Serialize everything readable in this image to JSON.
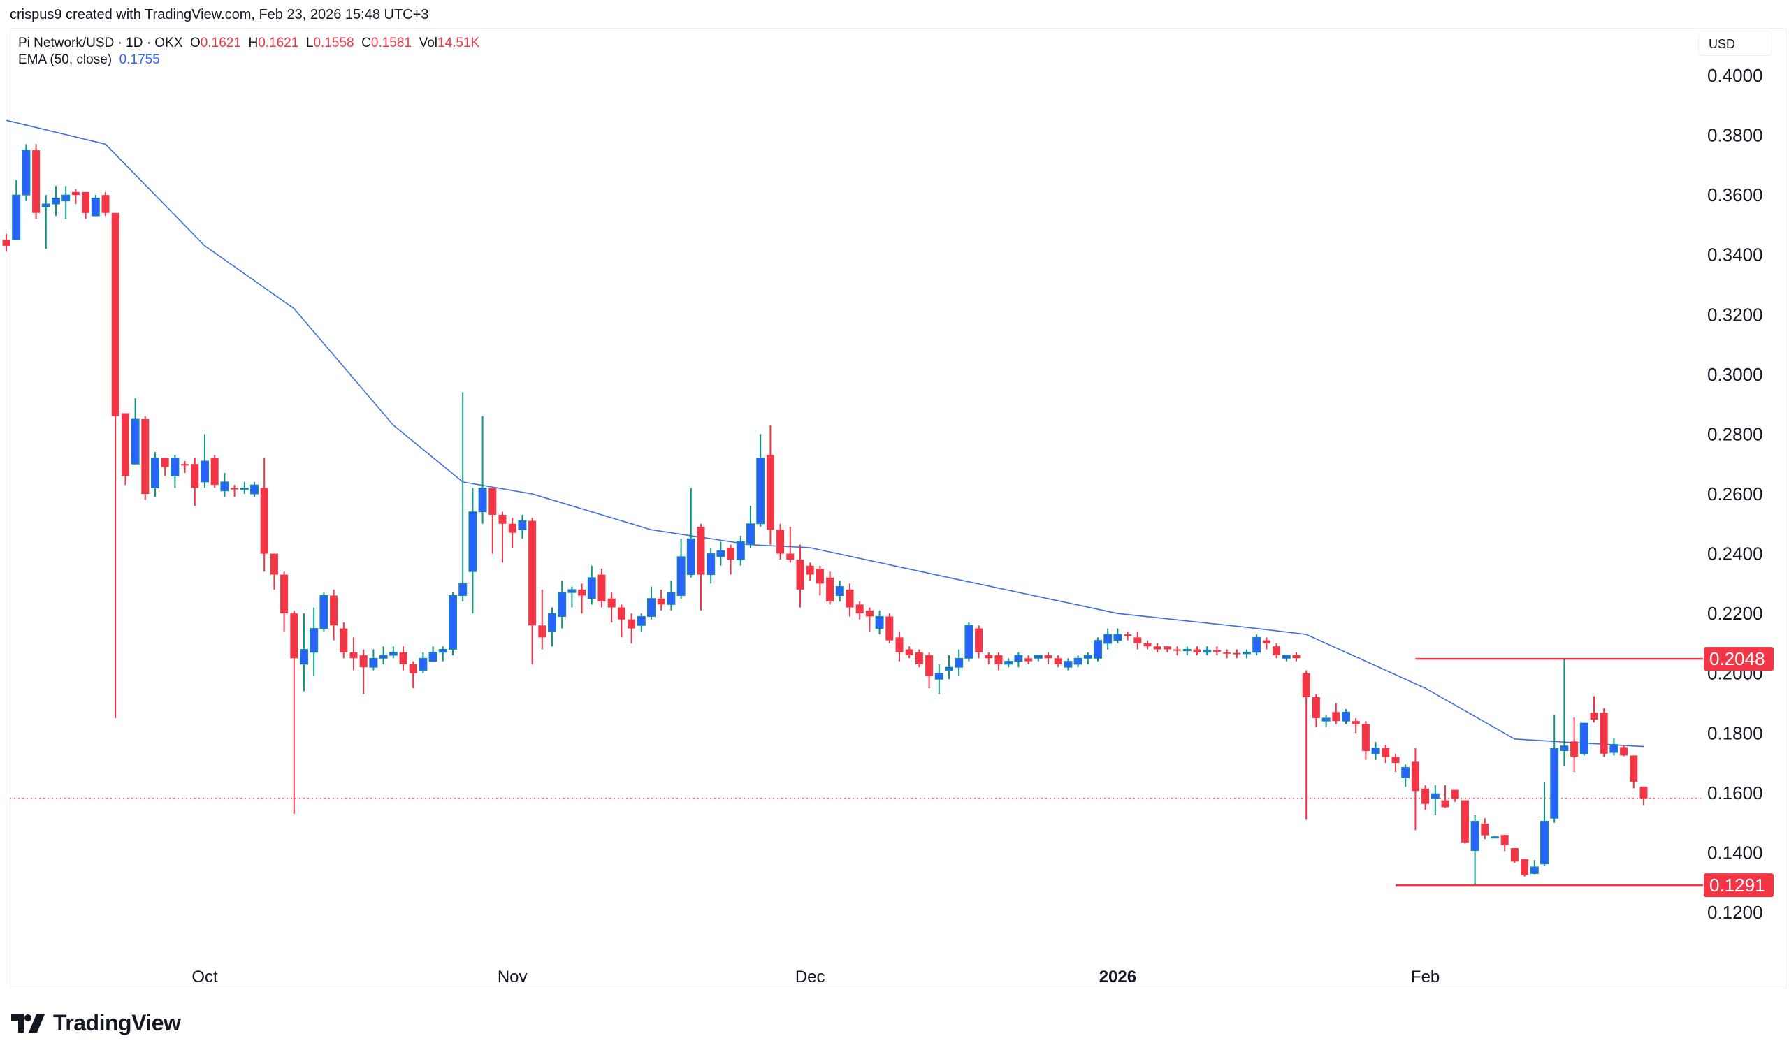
{
  "credit": "crispus9 created with TradingView.com, Feb 23, 2026 15:48 UTC+3",
  "legend": {
    "symbol": "Pi Network/USD · 1D · OKX",
    "o_label": "O",
    "o": "0.1621",
    "h_label": "H",
    "h": "0.1621",
    "l_label": "L",
    "l": "0.1558",
    "c_label": "C",
    "c": "0.1581",
    "vol_label": "Vol",
    "vol": "14.51K",
    "ema_label": "EMA (50, close)",
    "ema": "0.1755"
  },
  "currency": "USD",
  "logo_text": "TradingView",
  "colors": {
    "up": "#2962ff",
    "up_wick": "#089981",
    "down": "#f23645",
    "ema": "#3d6fdb",
    "level": "#f23645"
  },
  "chart_data": {
    "type": "candlestick",
    "ylim": [
      0.11,
      0.41
    ],
    "yticks": [
      "0.4000",
      "0.3800",
      "0.3600",
      "0.3400",
      "0.3200",
      "0.3000",
      "0.2800",
      "0.2600",
      "0.2400",
      "0.2200",
      "0.2000",
      "0.1800",
      "0.1600",
      "0.1400",
      "0.1200"
    ],
    "xticks": [
      {
        "label": "Oct",
        "date": "2025-10-01"
      },
      {
        "label": "Nov",
        "date": "2025-11-01"
      },
      {
        "label": "Dec",
        "date": "2025-12-01"
      },
      {
        "label": "2026",
        "date": "2026-01-01",
        "bold": true
      },
      {
        "label": "Feb",
        "date": "2026-02-01"
      }
    ],
    "levels": [
      {
        "value": 0.2048,
        "label": "0.2048",
        "from": "2026-01-31"
      },
      {
        "value": 0.1291,
        "label": "0.1291",
        "from": "2026-01-29"
      }
    ],
    "last_close": 0.1581,
    "ema": [
      [
        "2025-09-11",
        0.385
      ],
      [
        "2025-09-21",
        0.377
      ],
      [
        "2025-10-01",
        0.343
      ],
      [
        "2025-10-10",
        0.322
      ],
      [
        "2025-10-20",
        0.283
      ],
      [
        "2025-10-27",
        0.264
      ],
      [
        "2025-11-03",
        0.26
      ],
      [
        "2025-11-15",
        0.248
      ],
      [
        "2025-11-25",
        0.243
      ],
      [
        "2025-12-01",
        0.242
      ],
      [
        "2025-12-15",
        0.232
      ],
      [
        "2026-01-01",
        0.22
      ],
      [
        "2026-01-15",
        0.215
      ],
      [
        "2026-01-20",
        0.213
      ],
      [
        "2026-02-01",
        0.195
      ],
      [
        "2026-02-10",
        0.178
      ],
      [
        "2026-02-15",
        0.177
      ],
      [
        "2026-02-23",
        0.1755
      ]
    ],
    "ohlc_fields": [
      "date",
      "open",
      "high",
      "low",
      "close"
    ],
    "candles": [
      [
        "2025-09-11",
        0.345,
        0.347,
        0.341,
        0.343
      ],
      [
        "2025-09-12",
        0.345,
        0.365,
        0.345,
        0.36
      ],
      [
        "2025-09-13",
        0.36,
        0.377,
        0.358,
        0.375
      ],
      [
        "2025-09-14",
        0.375,
        0.377,
        0.352,
        0.354
      ],
      [
        "2025-09-15",
        0.356,
        0.36,
        0.342,
        0.357
      ],
      [
        "2025-09-16",
        0.357,
        0.363,
        0.353,
        0.359
      ],
      [
        "2025-09-17",
        0.358,
        0.363,
        0.352,
        0.36
      ],
      [
        "2025-09-18",
        0.361,
        0.362,
        0.357,
        0.36
      ],
      [
        "2025-09-19",
        0.361,
        0.361,
        0.352,
        0.354
      ],
      [
        "2025-09-20",
        0.353,
        0.36,
        0.353,
        0.359
      ],
      [
        "2025-09-21",
        0.36,
        0.361,
        0.353,
        0.354
      ],
      [
        "2025-09-22",
        0.354,
        0.354,
        0.185,
        0.286
      ],
      [
        "2025-09-23",
        0.287,
        0.287,
        0.263,
        0.266
      ],
      [
        "2025-09-24",
        0.27,
        0.292,
        0.27,
        0.285
      ],
      [
        "2025-09-25",
        0.285,
        0.286,
        0.258,
        0.26
      ],
      [
        "2025-09-26",
        0.262,
        0.274,
        0.259,
        0.272
      ],
      [
        "2025-09-27",
        0.272,
        0.272,
        0.266,
        0.269
      ],
      [
        "2025-09-28",
        0.266,
        0.273,
        0.262,
        0.272
      ],
      [
        "2025-09-29",
        0.27,
        0.271,
        0.267,
        0.2695
      ],
      [
        "2025-09-30",
        0.27,
        0.272,
        0.256,
        0.262
      ],
      [
        "2025-10-01",
        0.264,
        0.28,
        0.262,
        0.271
      ],
      [
        "2025-10-02",
        0.272,
        0.273,
        0.262,
        0.263
      ],
      [
        "2025-10-03",
        0.261,
        0.267,
        0.259,
        0.264
      ],
      [
        "2025-10-04",
        0.262,
        0.263,
        0.259,
        0.2615
      ],
      [
        "2025-10-05",
        0.262,
        0.264,
        0.26,
        0.262
      ],
      [
        "2025-10-06",
        0.26,
        0.264,
        0.259,
        0.263
      ],
      [
        "2025-10-07",
        0.262,
        0.272,
        0.234,
        0.24
      ],
      [
        "2025-10-08",
        0.24,
        0.24,
        0.228,
        0.233
      ],
      [
        "2025-10-09",
        0.233,
        0.234,
        0.214,
        0.22
      ],
      [
        "2025-10-10",
        0.22,
        0.221,
        0.153,
        0.205
      ],
      [
        "2025-10-11",
        0.203,
        0.22,
        0.194,
        0.208
      ],
      [
        "2025-10-12",
        0.207,
        0.222,
        0.199,
        0.215
      ],
      [
        "2025-10-13",
        0.215,
        0.227,
        0.214,
        0.226
      ],
      [
        "2025-10-14",
        0.226,
        0.228,
        0.211,
        0.216
      ],
      [
        "2025-10-15",
        0.215,
        0.217,
        0.205,
        0.207
      ],
      [
        "2025-10-16",
        0.207,
        0.212,
        0.201,
        0.205
      ],
      [
        "2025-10-17",
        0.206,
        0.208,
        0.193,
        0.202
      ],
      [
        "2025-10-18",
        0.202,
        0.208,
        0.201,
        0.205
      ],
      [
        "2025-10-19",
        0.205,
        0.209,
        0.203,
        0.206
      ],
      [
        "2025-10-20",
        0.206,
        0.209,
        0.205,
        0.207
      ],
      [
        "2025-10-21",
        0.207,
        0.209,
        0.201,
        0.203
      ],
      [
        "2025-10-22",
        0.203,
        0.204,
        0.195,
        0.2
      ],
      [
        "2025-10-23",
        0.201,
        0.207,
        0.2,
        0.205
      ],
      [
        "2025-10-24",
        0.204,
        0.209,
        0.204,
        0.207
      ],
      [
        "2025-10-25",
        0.207,
        0.209,
        0.204,
        0.208
      ],
      [
        "2025-10-26",
        0.208,
        0.227,
        0.206,
        0.226
      ],
      [
        "2025-10-27",
        0.226,
        0.294,
        0.224,
        0.23
      ],
      [
        "2025-10-28",
        0.234,
        0.262,
        0.22,
        0.254
      ],
      [
        "2025-10-29",
        0.254,
        0.286,
        0.25,
        0.262
      ],
      [
        "2025-10-30",
        0.262,
        0.262,
        0.24,
        0.253
      ],
      [
        "2025-10-31",
        0.253,
        0.254,
        0.237,
        0.25
      ],
      [
        "2025-11-01",
        0.25,
        0.252,
        0.242,
        0.247
      ],
      [
        "2025-11-02",
        0.248,
        0.253,
        0.245,
        0.251
      ],
      [
        "2025-11-03",
        0.251,
        0.252,
        0.203,
        0.216
      ],
      [
        "2025-11-04",
        0.216,
        0.228,
        0.208,
        0.212
      ],
      [
        "2025-11-05",
        0.214,
        0.222,
        0.209,
        0.22
      ],
      [
        "2025-11-06",
        0.219,
        0.231,
        0.215,
        0.227
      ],
      [
        "2025-11-07",
        0.227,
        0.229,
        0.222,
        0.228
      ],
      [
        "2025-11-08",
        0.228,
        0.23,
        0.22,
        0.226
      ],
      [
        "2025-11-09",
        0.225,
        0.236,
        0.223,
        0.232
      ],
      [
        "2025-11-10",
        0.233,
        0.235,
        0.222,
        0.224
      ],
      [
        "2025-11-11",
        0.225,
        0.227,
        0.217,
        0.222
      ],
      [
        "2025-11-12",
        0.222,
        0.223,
        0.212,
        0.218
      ],
      [
        "2025-11-13",
        0.218,
        0.22,
        0.21,
        0.215
      ],
      [
        "2025-11-14",
        0.216,
        0.22,
        0.214,
        0.219
      ],
      [
        "2025-11-15",
        0.219,
        0.229,
        0.218,
        0.225
      ],
      [
        "2025-11-16",
        0.225,
        0.228,
        0.221,
        0.223
      ],
      [
        "2025-11-17",
        0.223,
        0.231,
        0.221,
        0.227
      ],
      [
        "2025-11-18",
        0.226,
        0.245,
        0.225,
        0.239
      ],
      [
        "2025-11-19",
        0.233,
        0.262,
        0.232,
        0.245
      ],
      [
        "2025-11-20",
        0.249,
        0.25,
        0.221,
        0.233
      ],
      [
        "2025-11-21",
        0.233,
        0.242,
        0.23,
        0.24
      ],
      [
        "2025-11-22",
        0.239,
        0.244,
        0.236,
        0.241
      ],
      [
        "2025-11-23",
        0.242,
        0.243,
        0.233,
        0.238
      ],
      [
        "2025-11-24",
        0.238,
        0.246,
        0.236,
        0.244
      ],
      [
        "2025-11-25",
        0.243,
        0.256,
        0.242,
        0.25
      ],
      [
        "2025-11-26",
        0.25,
        0.28,
        0.249,
        0.272
      ],
      [
        "2025-11-27",
        0.273,
        0.283,
        0.243,
        0.248
      ],
      [
        "2025-11-28",
        0.248,
        0.25,
        0.238,
        0.24
      ],
      [
        "2025-11-29",
        0.24,
        0.249,
        0.237,
        0.238
      ],
      [
        "2025-11-30",
        0.238,
        0.243,
        0.222,
        0.228
      ],
      [
        "2025-12-01",
        0.236,
        0.237,
        0.231,
        0.233
      ],
      [
        "2025-12-02",
        0.235,
        0.236,
        0.226,
        0.23
      ],
      [
        "2025-12-03",
        0.232,
        0.234,
        0.223,
        0.224
      ],
      [
        "2025-12-04",
        0.226,
        0.231,
        0.224,
        0.229
      ],
      [
        "2025-12-05",
        0.228,
        0.23,
        0.219,
        0.222
      ],
      [
        "2025-12-06",
        0.223,
        0.224,
        0.218,
        0.22
      ],
      [
        "2025-12-07",
        0.221,
        0.222,
        0.214,
        0.219
      ],
      [
        "2025-12-08",
        0.215,
        0.221,
        0.213,
        0.219
      ],
      [
        "2025-12-09",
        0.219,
        0.22,
        0.21,
        0.211
      ],
      [
        "2025-12-10",
        0.212,
        0.214,
        0.204,
        0.207
      ],
      [
        "2025-12-11",
        0.208,
        0.209,
        0.205,
        0.206
      ],
      [
        "2025-12-12",
        0.207,
        0.208,
        0.202,
        0.203
      ],
      [
        "2025-12-13",
        0.206,
        0.207,
        0.195,
        0.199
      ],
      [
        "2025-12-14",
        0.198,
        0.203,
        0.193,
        0.2
      ],
      [
        "2025-12-15",
        0.201,
        0.206,
        0.198,
        0.202
      ],
      [
        "2025-12-16",
        0.202,
        0.208,
        0.199,
        0.205
      ],
      [
        "2025-12-17",
        0.205,
        0.217,
        0.204,
        0.216
      ],
      [
        "2025-12-18",
        0.215,
        0.216,
        0.205,
        0.207
      ],
      [
        "2025-12-19",
        0.206,
        0.207,
        0.203,
        0.205
      ],
      [
        "2025-12-20",
        0.206,
        0.207,
        0.201,
        0.203
      ],
      [
        "2025-12-21",
        0.203,
        0.205,
        0.202,
        0.204
      ],
      [
        "2025-12-22",
        0.204,
        0.207,
        0.202,
        0.206
      ],
      [
        "2025-12-23",
        0.205,
        0.206,
        0.203,
        0.204
      ],
      [
        "2025-12-24",
        0.205,
        0.206,
        0.204,
        0.206
      ],
      [
        "2025-12-25",
        0.206,
        0.207,
        0.203,
        0.205
      ],
      [
        "2025-12-26",
        0.205,
        0.206,
        0.202,
        0.203
      ],
      [
        "2025-12-27",
        0.202,
        0.205,
        0.201,
        0.204
      ],
      [
        "2025-12-28",
        0.203,
        0.206,
        0.202,
        0.205
      ],
      [
        "2025-12-29",
        0.205,
        0.207,
        0.203,
        0.206
      ],
      [
        "2025-12-30",
        0.205,
        0.212,
        0.204,
        0.211
      ],
      [
        "2025-12-31",
        0.21,
        0.215,
        0.208,
        0.213
      ],
      [
        "2026-01-01",
        0.211,
        0.215,
        0.21,
        0.213
      ],
      [
        "2026-01-02",
        0.213,
        0.214,
        0.211,
        0.2125
      ],
      [
        "2026-01-03",
        0.212,
        0.214,
        0.208,
        0.21
      ],
      [
        "2026-01-04",
        0.21,
        0.211,
        0.208,
        0.209
      ],
      [
        "2026-01-05",
        0.209,
        0.21,
        0.207,
        0.208
      ],
      [
        "2026-01-06",
        0.209,
        0.209,
        0.207,
        0.208
      ],
      [
        "2026-01-07",
        0.208,
        0.209,
        0.206,
        0.2075
      ],
      [
        "2026-01-08",
        0.2075,
        0.209,
        0.206,
        0.208
      ],
      [
        "2026-01-09",
        0.208,
        0.209,
        0.206,
        0.207
      ],
      [
        "2026-01-10",
        0.207,
        0.209,
        0.206,
        0.2078
      ],
      [
        "2026-01-11",
        0.2078,
        0.209,
        0.206,
        0.2072
      ],
      [
        "2026-01-12",
        0.207,
        0.208,
        0.205,
        0.2068
      ],
      [
        "2026-01-13",
        0.2068,
        0.208,
        0.205,
        0.2065
      ],
      [
        "2026-01-14",
        0.2065,
        0.208,
        0.205,
        0.207
      ],
      [
        "2026-01-15",
        0.207,
        0.213,
        0.206,
        0.212
      ],
      [
        "2026-01-16",
        0.211,
        0.212,
        0.208,
        0.21
      ],
      [
        "2026-01-17",
        0.209,
        0.21,
        0.205,
        0.206
      ],
      [
        "2026-01-18",
        0.205,
        0.206,
        0.204,
        0.206
      ],
      [
        "2026-01-19",
        0.206,
        0.207,
        0.204,
        0.205
      ],
      [
        "2026-01-20",
        0.2,
        0.201,
        0.151,
        0.192
      ],
      [
        "2026-01-21",
        0.192,
        0.193,
        0.182,
        0.185
      ],
      [
        "2026-01-22",
        0.184,
        0.186,
        0.182,
        0.185
      ],
      [
        "2026-01-23",
        0.187,
        0.19,
        0.183,
        0.184
      ],
      [
        "2026-01-24",
        0.184,
        0.188,
        0.183,
        0.187
      ],
      [
        "2026-01-25",
        0.184,
        0.185,
        0.18,
        0.183
      ],
      [
        "2026-01-26",
        0.183,
        0.184,
        0.171,
        0.174
      ],
      [
        "2026-01-27",
        0.173,
        0.177,
        0.171,
        0.175
      ],
      [
        "2026-01-28",
        0.175,
        0.176,
        0.17,
        0.172
      ],
      [
        "2026-01-29",
        0.172,
        0.173,
        0.167,
        0.17
      ],
      [
        "2026-01-30",
        0.165,
        0.1695,
        0.162,
        0.1685
      ],
      [
        "2026-01-31",
        0.1704,
        0.175,
        0.1475,
        0.1606
      ],
      [
        "2026-02-01",
        0.1614,
        0.1625,
        0.1543,
        0.1563
      ],
      [
        "2026-02-02",
        0.1581,
        0.1625,
        0.1525,
        0.1597
      ],
      [
        "2026-02-03",
        0.1575,
        0.1625,
        0.155,
        0.1552
      ],
      [
        "2026-02-04",
        0.161,
        0.161,
        0.157,
        0.158
      ],
      [
        "2026-02-05",
        0.1575,
        0.1575,
        0.143,
        0.1434
      ],
      [
        "2026-02-06",
        0.1407,
        0.1525,
        0.1291,
        0.1505
      ],
      [
        "2026-02-07",
        0.1497,
        0.1515,
        0.1445,
        0.1458
      ],
      [
        "2026-02-08",
        0.1452,
        0.1455,
        0.1449,
        0.1453
      ],
      [
        "2026-02-09",
        0.1459,
        0.1459,
        0.1405,
        0.1425
      ],
      [
        "2026-02-10",
        0.1415,
        0.1415,
        0.1365,
        0.137
      ],
      [
        "2026-02-11",
        0.1378,
        0.1378,
        0.132,
        0.1325
      ],
      [
        "2026-02-12",
        0.133,
        0.1375,
        0.1327,
        0.1352
      ],
      [
        "2026-02-13",
        0.1362,
        0.1635,
        0.1355,
        0.1505
      ],
      [
        "2026-02-14",
        0.1515,
        0.186,
        0.15,
        0.1748
      ],
      [
        "2026-02-15",
        0.1741,
        0.2048,
        0.169,
        0.1757
      ],
      [
        "2026-02-16",
        0.1772,
        0.1852,
        0.167,
        0.1721
      ],
      [
        "2026-02-17",
        0.173,
        0.1835,
        0.1725,
        0.1833
      ],
      [
        "2026-02-18",
        0.1868,
        0.1923,
        0.1835,
        0.1845
      ],
      [
        "2026-02-19",
        0.1868,
        0.1883,
        0.172,
        0.1731
      ],
      [
        "2026-02-20",
        0.1735,
        0.1783,
        0.1725,
        0.1762
      ],
      [
        "2026-02-21",
        0.1753,
        0.176,
        0.1722,
        0.1725
      ],
      [
        "2026-02-22",
        0.1725,
        0.1725,
        0.1615,
        0.1637
      ],
      [
        "2026-02-23",
        0.1621,
        0.1621,
        0.1558,
        0.1581
      ]
    ]
  }
}
